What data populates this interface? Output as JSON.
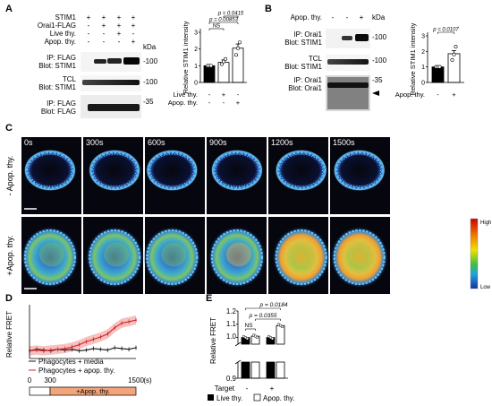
{
  "panel_letters": {
    "a": "A",
    "b": "B",
    "c": "C",
    "d": "D",
    "e": "E"
  },
  "panel_a": {
    "row_labels": [
      "STIM1",
      "Orai1-FLAG",
      "Live thy.",
      "Apop. thy."
    ],
    "signs": [
      [
        "+",
        "+",
        "+",
        "+"
      ],
      [
        "-",
        "+",
        "+",
        "+"
      ],
      [
        "-",
        "-",
        "+",
        "-"
      ],
      [
        "-",
        "-",
        "-",
        "+"
      ]
    ],
    "kda": "kDa",
    "blots": [
      {
        "l1": "IP: FLAG",
        "l2": "Blot: STIM1",
        "mw": "-100"
      },
      {
        "l1": "TCL",
        "l2": "Blot: STIM1",
        "mw": "-100"
      },
      {
        "l1": "IP: FLAG",
        "l2": "Blot: FLAG",
        "mw": "-35"
      }
    ]
  },
  "panel_b": {
    "row_label": "Apop. thy.",
    "signs": [
      "-",
      "-",
      "+"
    ],
    "kda": "kDa",
    "blots": [
      {
        "l1": "IP: Orai1",
        "l2": "Blot: STIM1",
        "mw": "-100"
      },
      {
        "l1": "TCL",
        "l2": "Blot: STIM1",
        "mw": "-100"
      },
      {
        "l1": "IP: Orai1",
        "l2": "Blot: Orai1",
        "mw": "-35"
      }
    ]
  },
  "panel_c": {
    "times": [
      "0s",
      "300s",
      "600s",
      "900s",
      "1200s",
      "1500s"
    ],
    "row_labels": [
      "- Apop. thy.",
      "+Apop. thy."
    ],
    "scale_high": "High",
    "scale_low": "Low",
    "colors": {
      "high": "#cc0000",
      "mid": "#f0e000",
      "low": "#1a2ea0"
    }
  },
  "panel_d": {
    "ylabel": "Relative FRET",
    "legend": [
      "Phagocytes + media",
      "Phagocytes + apop. thy."
    ],
    "time_axis": {
      "ticks": [
        "0",
        "300",
        "1500"
      ],
      "unit": "(s)"
    },
    "bar_label": "+Apop. thy.",
    "colors": {
      "media": "#111111",
      "apop": "#d42020",
      "apop_band": "#f4a6a6",
      "bar": "#f2a47a"
    }
  },
  "panel_e": {
    "ylabel": "Relative FRET",
    "yticks": [
      "1.2",
      "1.1",
      "1.0",
      "0.9"
    ],
    "xrow_label": "Target",
    "xsigns": [
      "-",
      "+"
    ],
    "legend": [
      "Live thy.",
      "Apop. thy."
    ],
    "stats": [
      {
        "label": "p = 0.0184"
      },
      {
        "label": "p = 0.0355"
      },
      {
        "label": "NS"
      }
    ]
  },
  "chart_data": [
    {
      "type": "bar",
      "panel": "A",
      "ylabel": "Relative STIM1 intensity",
      "categories": [
        "-",
        "Live thy.",
        "Apop. thy."
      ],
      "values": [
        1.0,
        1.2,
        2.05
      ],
      "points": [
        [
          1.0,
          1.0,
          1.0
        ],
        [
          1.1,
          1.25,
          1.4
        ],
        [
          1.65,
          2.05,
          2.4
        ]
      ],
      "errors": [
        0.0,
        0.15,
        0.25
      ],
      "colors": [
        "#000000",
        "#ffffff",
        "#ffffff"
      ],
      "ylim": [
        0,
        3
      ],
      "yticks": [
        0,
        1,
        2,
        3
      ],
      "xrows": [
        {
          "label": "Live thy.",
          "signs": [
            "-",
            "+",
            "-"
          ]
        },
        {
          "label": "Apop. thy.",
          "signs": [
            "-",
            "-",
            "+"
          ]
        }
      ],
      "annotations": [
        {
          "label": "p = 0.0415",
          "from": 1,
          "to": 2,
          "level": 2
        },
        {
          "label": "p = 0.00853",
          "from": 0,
          "to": 2,
          "level": 1
        },
        {
          "label": "NS",
          "from": 0,
          "to": 1,
          "level": 0
        }
      ]
    },
    {
      "type": "bar",
      "panel": "B",
      "ylabel": "Relative STIM1 intensity",
      "categories": [
        "-",
        "+"
      ],
      "values": [
        1.0,
        1.85
      ],
      "points": [
        [
          1.0,
          1.0,
          1.0
        ],
        [
          1.45,
          1.8,
          2.3
        ]
      ],
      "errors": [
        0.0,
        0.2
      ],
      "colors": [
        "#000000",
        "#ffffff"
      ],
      "ylim": [
        0,
        3
      ],
      "yticks": [
        0,
        1,
        2,
        3
      ],
      "xrows": [
        {
          "label": "Apop. thy.",
          "signs": [
            "-",
            "+"
          ]
        }
      ],
      "annotations": [
        {
          "label": "p = 0.0107",
          "from": 0,
          "to": 1,
          "level": 0
        }
      ]
    },
    {
      "type": "line",
      "panel": "D",
      "ylabel": "Relative FRET",
      "xlim": [
        0,
        1500
      ],
      "ylim": [
        0.9,
        1.6
      ],
      "series": [
        {
          "name": "Phagocytes + media",
          "x": [
            0,
            100,
            200,
            300,
            400,
            500,
            600,
            700,
            800,
            900,
            1000,
            1100,
            1200,
            1300,
            1400,
            1500
          ],
          "y": [
            1.0,
            1.02,
            1.01,
            1.0,
            1.02,
            1.01,
            1.02,
            1.0,
            1.01,
            1.03,
            1.02,
            1.01,
            1.04,
            1.03,
            1.02,
            1.04
          ]
        },
        {
          "name": "Phagocytes + apop. thy.",
          "x": [
            0,
            100,
            200,
            300,
            400,
            500,
            600,
            700,
            800,
            900,
            1000,
            1100,
            1200,
            1300,
            1400,
            1500
          ],
          "y": [
            1.0,
            1.01,
            1.0,
            1.01,
            1.02,
            1.03,
            1.05,
            1.08,
            1.12,
            1.15,
            1.18,
            1.22,
            1.3,
            1.36,
            1.38,
            1.4
          ]
        }
      ]
    },
    {
      "type": "bar",
      "panel": "E",
      "ylabel": "Relative FRET",
      "categories": [
        "Target -",
        "Target +"
      ],
      "series": [
        {
          "name": "Live thy.",
          "values": [
            1.0,
            1.0
          ]
        },
        {
          "name": "Apop. thy.",
          "values": [
            1.01,
            1.09
          ]
        }
      ],
      "ylim": [
        0.9,
        1.2
      ],
      "yticks": [
        0.9,
        1.0,
        1.1,
        1.2
      ]
    }
  ]
}
